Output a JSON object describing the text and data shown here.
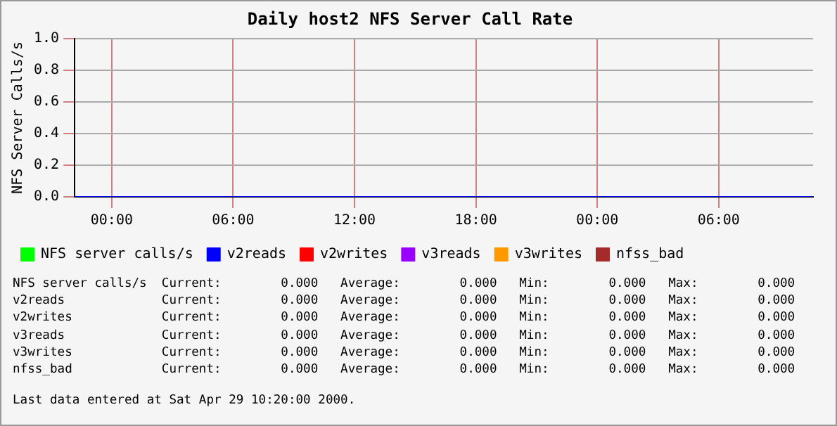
{
  "chart_data": {
    "type": "line",
    "title": "Daily host2 NFS Server Call Rate",
    "ylabel": "NFS Server Calls/s",
    "x": [
      "2000-04-27T22:10",
      "2000-04-29T10:40"
    ],
    "series": [
      {
        "name": "NFS server calls/s",
        "color": "#00ff00",
        "values": [
          null,
          null
        ]
      },
      {
        "name": "v2reads",
        "color": "#0000ff",
        "values": [
          0,
          0
        ]
      },
      {
        "name": "v2writes",
        "color": "#ff0000",
        "values": [
          null,
          null
        ]
      },
      {
        "name": "v3reads",
        "color": "#9900ff",
        "values": [
          null,
          null
        ]
      },
      {
        "name": "v3writes",
        "color": "#ff9900",
        "values": [
          null,
          null
        ]
      },
      {
        "name": "nfss_bad",
        "color": "#a52a2a",
        "values": [
          null,
          null
        ]
      }
    ],
    "xlim": [
      "2000-04-27T22:10",
      "2000-04-29T10:40"
    ],
    "xticks": [
      {
        "value": "2000-04-28T00:00",
        "label": "00:00"
      },
      {
        "value": "2000-04-28T06:00",
        "label": "06:00"
      },
      {
        "value": "2000-04-28T12:00",
        "label": "12:00"
      },
      {
        "value": "2000-04-28T18:00",
        "label": "18:00"
      },
      {
        "value": "2000-04-29T00:00",
        "label": "00:00"
      },
      {
        "value": "2000-04-29T06:00",
        "label": "06:00"
      }
    ],
    "ylim": [
      0,
      1
    ],
    "yticks": [
      {
        "value": 0,
        "label": "0.0"
      },
      {
        "value": 0.2,
        "label": "0.2"
      },
      {
        "value": 0.4,
        "label": "0.4"
      },
      {
        "value": 0.6,
        "label": "0.6"
      },
      {
        "value": 0.8,
        "label": "0.8"
      },
      {
        "value": 1,
        "label": "1.0"
      }
    ],
    "grid": true,
    "legend": "bottom",
    "marker": "none",
    "line_style": "solid",
    "annotations": [
      "NFS server calls/s  Current:        0.000   Average:        0.000   Min:        0.000   Max:        0.000",
      "v2reads             Current:        0.000   Average:        0.000   Min:        0.000   Max:        0.000",
      "v2writes            Current:        0.000   Average:        0.000   Min:        0.000   Max:        0.000",
      "v3reads             Current:        0.000   Average:        0.000   Min:        0.000   Max:        0.000",
      "v3writes            Current:        0.000   Average:        0.000   Min:        0.000   Max:        0.000",
      "nfss_bad            Current:        0.000   Average:        0.000   Min:        0.000   Max:        0.000",
      "Last data entered at Sat Apr 29 10:20:00 2000."
    ]
  }
}
